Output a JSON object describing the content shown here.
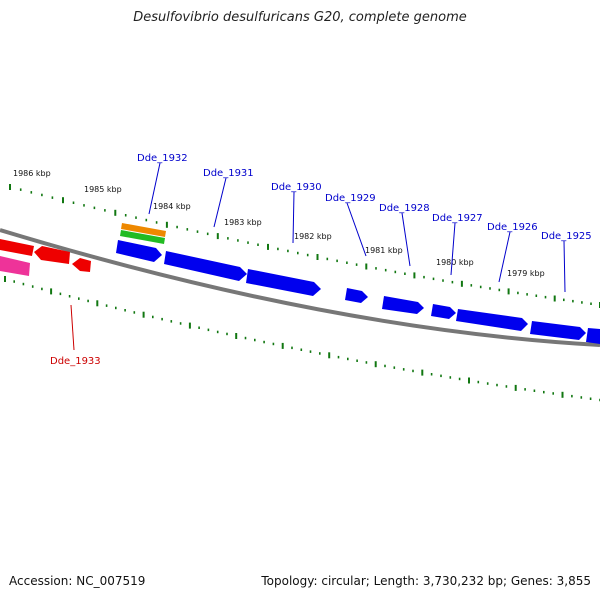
{
  "title": "Desulfovibrio desulfuricans G20, complete genome",
  "footer": {
    "accession": "Accession: NC_007519",
    "summary": "Topology: circular; Length: 3,730,232 bp; Genes: 3,855"
  },
  "colors": {
    "forward_gene": "#0000ee",
    "reverse_gene": "#ee0000",
    "pink_gene": "#ee3399",
    "orange_feature": "#ee8800",
    "green_feature": "#22bb22",
    "tick_marks": "#117711",
    "backbone": "#777777",
    "forward_label": "#0000cc",
    "reverse_label": "#cc0000"
  },
  "kbp_labels": [
    "1986 kbp",
    "1985 kbp",
    "1984 kbp",
    "1983 kbp",
    "1982 kbp",
    "1981 kbp",
    "1980 kbp",
    "1979 kbp"
  ],
  "gene_labels": {
    "forward": [
      "Dde_1932",
      "Dde_1931",
      "Dde_1930",
      "Dde_1929",
      "Dde_1928",
      "Dde_1927",
      "Dde_1926",
      "Dde_1925"
    ],
    "reverse": [
      "Dde_1933"
    ]
  }
}
